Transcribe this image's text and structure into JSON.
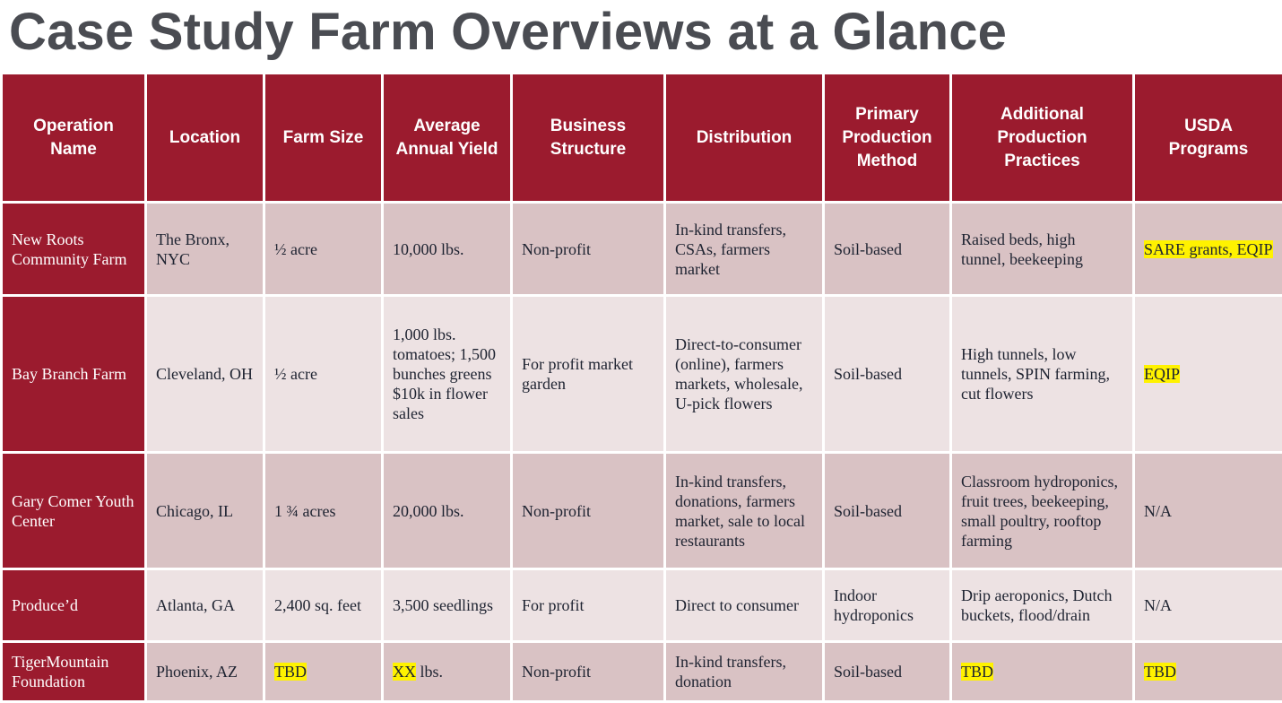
{
  "title": "Case Study Farm Overviews at a Glance",
  "colors": {
    "header_bg": "#9b1b2e",
    "row_dark": "#d9c2c4",
    "row_light": "#ede2e3",
    "highlight": "#fff200",
    "title": "#4a4c52"
  },
  "table": {
    "headers": [
      "Operation Name",
      "Location",
      "Farm Size",
      "Average Annual Yield",
      "Business Structure",
      "Distribution",
      "Primary Production Method",
      "Additional Production Practices",
      "USDA Programs"
    ],
    "rows": [
      {
        "name": "New Roots Community Farm",
        "location": "The Bronx, NYC",
        "size": "½ acre",
        "yield": "10,000 lbs.",
        "structure": "Non-profit",
        "distribution": "In-kind transfers, CSAs, farmers market",
        "method": "Soil-based",
        "practices": "Raised beds, high tunnel, beekeeping",
        "usda": "SARE grants, EQIP"
      },
      {
        "name": "Bay Branch Farm",
        "location": "Cleveland, OH",
        "size": "½ acre",
        "yield": "1,000 lbs. tomatoes; 1,500 bunches greens $10k in flower sales",
        "structure": "For profit market garden",
        "distribution": "Direct-to-consumer (online), farmers markets, wholesale, U-pick flowers",
        "method": "Soil-based",
        "practices": "High tunnels, low tunnels, SPIN farming, cut flowers",
        "usda": "EQIP"
      },
      {
        "name": "Gary Comer Youth Center",
        "location": "Chicago, IL",
        "size": "1 ¾ acres",
        "yield": "20,000 lbs.",
        "structure": "Non-profit",
        "distribution": "In-kind transfers, donations, farmers market, sale to local restaurants",
        "method": "Soil-based",
        "practices": "Classroom hydroponics, fruit trees, beekeeping, small poultry, rooftop farming",
        "usda": "N/A"
      },
      {
        "name": "Produce’d",
        "location": "Atlanta, GA",
        "size": "2,400 sq. feet",
        "yield": "3,500 seedlings",
        "structure": "For profit",
        "distribution": "Direct to consumer",
        "method": "Indoor hydroponics",
        "practices": "Drip aeroponics, Dutch buckets, flood/drain",
        "usda": "N/A"
      },
      {
        "name": "TigerMountain Foundation",
        "location": "Phoenix, AZ",
        "size": "TBD",
        "yield_hl": "XX",
        "yield_rest": " lbs.",
        "structure": "Non-profit",
        "distribution": "In-kind transfers, donation",
        "method": "Soil-based",
        "practices": "TBD",
        "usda": "TBD"
      }
    ]
  }
}
